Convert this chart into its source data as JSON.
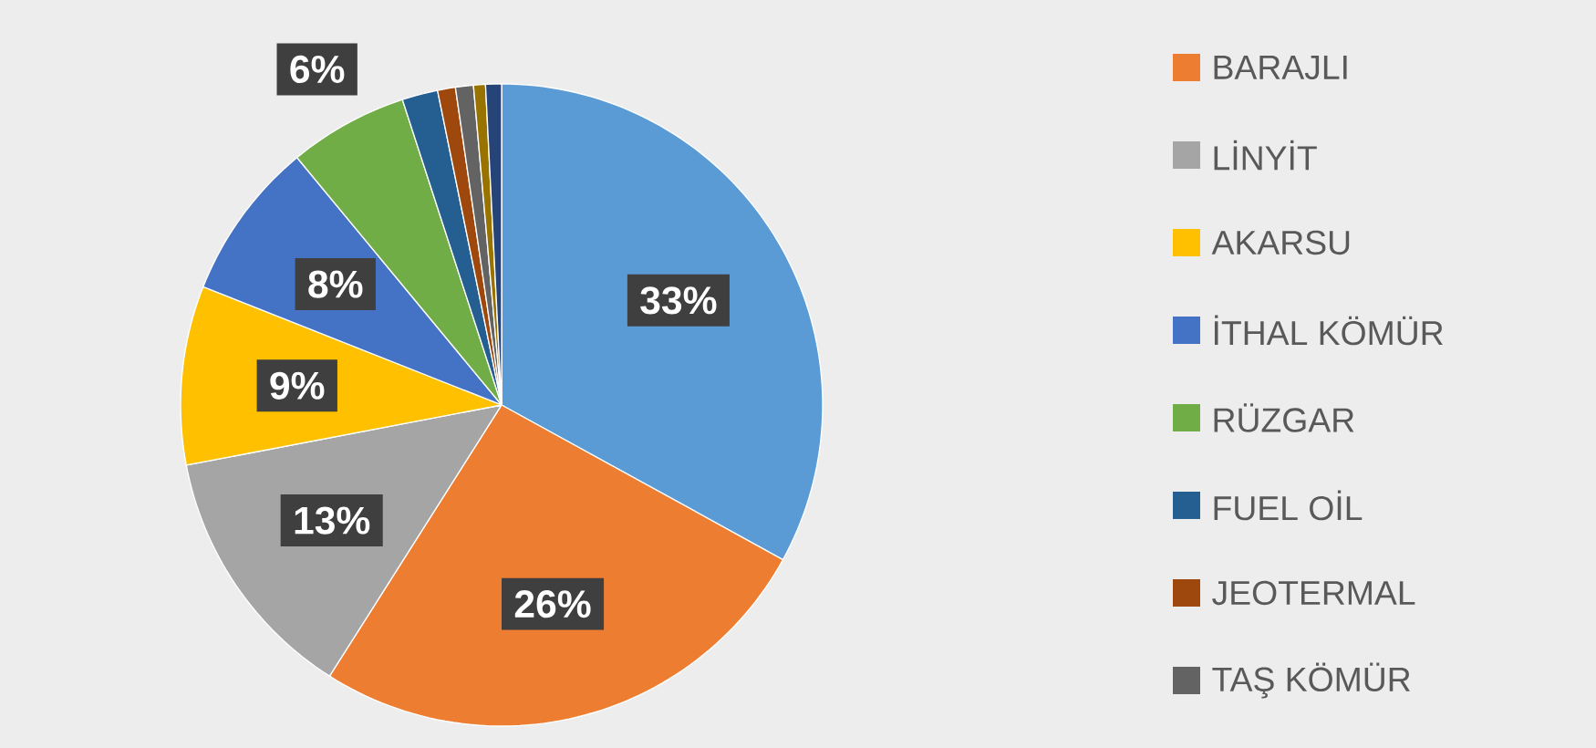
{
  "chart_data": {
    "type": "pie",
    "categories": [
      null,
      "BARAJLI",
      "LİNYİT",
      "AKARSU",
      "İTHAL KÖMÜR",
      "RÜZGAR",
      "FUEL OİL",
      "JEOTERMAL",
      "TAŞ KÖMÜR",
      null,
      null
    ],
    "values": [
      33,
      26,
      13,
      9,
      8,
      6,
      1.8,
      0.9,
      0.9,
      0.6,
      0.8
    ],
    "colors": [
      "#5b9bd5",
      "#ed7d31",
      "#a5a5a5",
      "#ffc000",
      "#4472c4",
      "#70ad47",
      "#255e91",
      "#9e480e",
      "#636363",
      "#997300",
      "#264478"
    ],
    "value_labels": [
      "33%",
      "26%",
      "13%",
      "9%",
      "8%",
      "6%",
      null,
      null,
      null,
      null,
      null
    ],
    "legend": "right"
  }
}
